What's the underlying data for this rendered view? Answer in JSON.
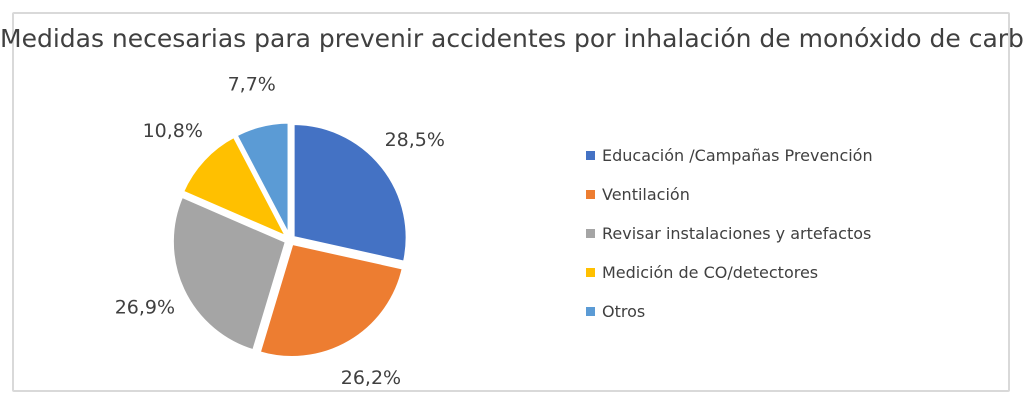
{
  "chart_data": {
    "type": "pie",
    "title": "Medidas necesarias para prevenir accidentes por inhalación de monóxido de carbono",
    "categories": [
      "Educación /Campañas Prevención",
      "Ventilación",
      "Revisar instalaciones y artefactos",
      "Medición de CO/detectores",
      "Otros"
    ],
    "values": [
      28.5,
      26.2,
      26.9,
      10.8,
      7.7
    ],
    "value_labels": [
      "28,5%",
      "26,2%",
      "26,9%",
      "10,8%",
      "7,7%"
    ],
    "colors": [
      "#4472C4",
      "#ED7D31",
      "#A5A5A5",
      "#FFC000",
      "#5B9BD5"
    ],
    "legend_position": "right",
    "exploded": true
  }
}
